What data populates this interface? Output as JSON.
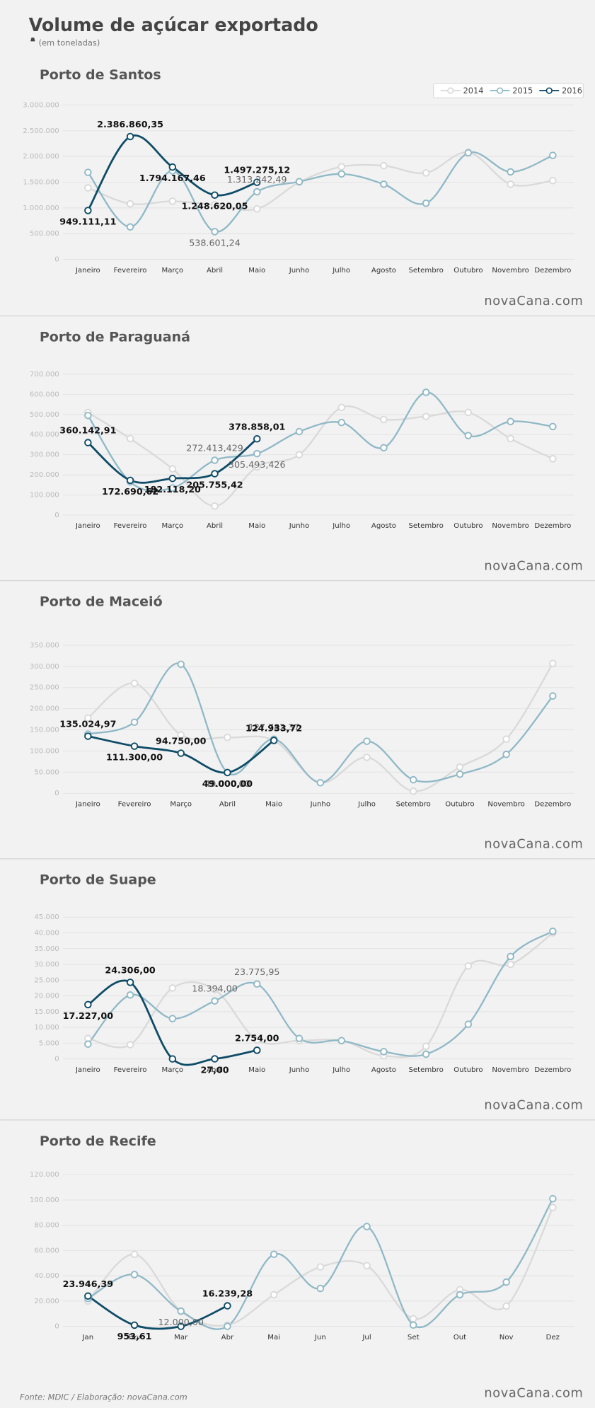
{
  "title": "Volume de açúcar exportado",
  "subtitle": "(em toneladas)",
  "source": "Fonte: MDIC / Elaboração: novaCana.com",
  "logo": "novaCana.com",
  "chart_data": [
    {
      "type": "line",
      "title": "Porto de Santos",
      "legend": "top-right",
      "categories": [
        "Janeiro",
        "Fevereiro",
        "Março",
        "Abril",
        "Maio",
        "Junho",
        "Julho",
        "Agosto",
        "Setembro",
        "Outubro",
        "Novembro",
        "Dezembro"
      ],
      "ylim": [
        0,
        3000000
      ],
      "yticks": [
        0,
        {
          "value": 500000,
          "label": "500.000"
        },
        {
          "value": 1000000,
          "label": "1.000.000"
        },
        {
          "value": 1500000,
          "label": "1.500.000"
        },
        {
          "value": 2000000,
          "label": "2.000.000"
        },
        {
          "value": 2500000,
          "label": "2.500.000"
        },
        {
          "value": 3000000,
          "label": "3.000.000"
        }
      ],
      "grid": true,
      "series": [
        {
          "name": "2014",
          "color": "#d9d9d9",
          "values": [
            1390000,
            1080000,
            1130000,
            1060000,
            980000,
            1500000,
            1800000,
            1820000,
            1680000,
            2080000,
            1460000,
            1530000
          ]
        },
        {
          "name": "2015",
          "color": "#8fb8c6",
          "values": [
            1690000,
            630000,
            1720000,
            538601.24,
            1313242.49,
            1510000,
            1660000,
            1460000,
            1090000,
            2070000,
            1700000,
            2020000
          ],
          "value_labels": [
            null,
            null,
            null,
            "538.601,24",
            "1.313.242,49",
            null,
            null,
            null,
            null,
            null,
            null,
            null
          ]
        },
        {
          "name": "2016",
          "color": "#0f4c67",
          "values": [
            949111.11,
            2386860.35,
            1794167.46,
            1248620.05,
            1497275.12,
            null,
            null,
            null,
            null,
            null,
            null,
            null
          ],
          "value_labels": [
            "949.111,11",
            "2.386.860,35",
            "1.794.167,46",
            "1.248.620,05",
            "1.497.275,12",
            null,
            null,
            null,
            null,
            null,
            null,
            null
          ]
        }
      ]
    },
    {
      "type": "line",
      "title": "Porto de Paraguaná",
      "categories": [
        "Janeiro",
        "Fevereiro",
        "Março",
        "Abril",
        "Maio",
        "Junho",
        "Julho",
        "Agosto",
        "Setembro",
        "Outubro",
        "Novembro",
        "Dezembro"
      ],
      "ylim": [
        0,
        700000
      ],
      "yticks": [
        0,
        {
          "value": 100000,
          "label": "100.000"
        },
        {
          "value": 200000,
          "label": "200.000"
        },
        {
          "value": 300000,
          "label": "300.000"
        },
        {
          "value": 400000,
          "label": "400.000"
        },
        {
          "value": 500000,
          "label": "500.000"
        },
        {
          "value": 600000,
          "label": "600.000"
        },
        {
          "value": 700000,
          "label": "700.000"
        }
      ],
      "grid": true,
      "series": [
        {
          "name": "2014",
          "color": "#d9d9d9",
          "values": [
            510000,
            380000,
            230000,
            45000,
            240000,
            300000,
            535000,
            475000,
            490000,
            510000,
            380000,
            280000
          ]
        },
        {
          "name": "2015",
          "color": "#8fb8c6",
          "values": [
            495000,
            165000,
            135000,
            272413.429,
            305493.426,
            415000,
            460000,
            335000,
            610000,
            395000,
            465000,
            440000
          ],
          "value_labels": [
            null,
            null,
            null,
            "272.413,429",
            "305.493,426",
            null,
            null,
            null,
            null,
            null,
            null,
            null
          ]
        },
        {
          "name": "2016",
          "color": "#0f4c67",
          "values": [
            360142.91,
            172690.62,
            182118.2,
            205755.42,
            378858.01,
            null,
            null,
            null,
            null,
            null,
            null,
            null
          ],
          "value_labels": [
            "360.142,91",
            "172.690,62",
            "182.118,20",
            "205.755,42",
            "378.858,01",
            null,
            null,
            null,
            null,
            null,
            null,
            null
          ]
        }
      ]
    },
    {
      "type": "line",
      "title": "Porto de Maceió",
      "categories": [
        "Janeiro",
        "Fevereiro",
        "Março",
        "Abril",
        "Maio",
        "Junho",
        "Julho",
        "Setembro",
        "Outubro",
        "Novembro",
        "Dezembro"
      ],
      "ylim": [
        0,
        350000
      ],
      "yticks": [
        0,
        {
          "value": 50000,
          "label": "50.000"
        },
        {
          "value": 100000,
          "label": "100.000"
        },
        {
          "value": 150000,
          "label": "150.000"
        },
        {
          "value": 200000,
          "label": "200.000"
        },
        {
          "value": 250000,
          "label": "250.000"
        },
        {
          "value": 300000,
          "label": "300.000"
        },
        {
          "value": 350000,
          "label": "350.000"
        }
      ],
      "grid": true,
      "series": [
        {
          "name": "2014",
          "color": "#d9d9d9",
          "values": [
            178000,
            260000,
            138000,
            132000,
            125000,
            25000,
            85000,
            5000,
            62000,
            128000,
            307000
          ]
        },
        {
          "name": "2015",
          "color": "#8fb8c6",
          "values": [
            140000,
            168000,
            305000,
            49000,
            127782.37,
            25000,
            123000,
            32000,
            45000,
            92000,
            230000
          ],
          "value_labels": [
            null,
            null,
            null,
            "49.000,00",
            "127.782,37",
            null,
            null,
            null,
            null,
            null,
            null
          ]
        },
        {
          "name": "2016",
          "color": "#0f4c67",
          "values": [
            135024.97,
            111300.0,
            94750.0,
            49000.0,
            124933.72,
            null,
            null,
            null,
            null,
            null,
            null
          ],
          "value_labels": [
            "135.024,97",
            "111.300,00",
            "94.750,00",
            "49.000,00",
            "124.933,72",
            null,
            null,
            null,
            null,
            null,
            null
          ]
        }
      ]
    },
    {
      "type": "line",
      "title": "Porto de Suape",
      "categories": [
        "Janeiro",
        "Fevereiro",
        "Março",
        "Abril",
        "Maio",
        "Junho",
        "Julho",
        "Agosto",
        "Setembro",
        "Outubro",
        "Novembro",
        "Dezembro"
      ],
      "ylim": [
        0,
        45000
      ],
      "yticks": [
        0,
        {
          "value": 5000,
          "label": "5.000"
        },
        {
          "value": 10000,
          "label": "10.000"
        },
        {
          "value": 15000,
          "label": "15.000"
        },
        {
          "value": 20000,
          "label": "20.000"
        },
        {
          "value": 25000,
          "label": "25.000"
        },
        {
          "value": 30000,
          "label": "30.000"
        },
        {
          "value": 35000,
          "label": "35.000"
        },
        {
          "value": 40000,
          "label": "40.000"
        },
        {
          "value": 45000,
          "label": "45.000"
        }
      ],
      "grid": true,
      "series": [
        {
          "name": "2014",
          "color": "#d9d9d9",
          "values": [
            6500,
            4500,
            22500,
            22000,
            6000,
            5800,
            5800,
            1000,
            4000,
            29500,
            30000,
            40000
          ]
        },
        {
          "name": "2015",
          "color": "#8fb8c6",
          "values": [
            4700,
            20300,
            12800,
            18394.0,
            23775.95,
            6500,
            5800,
            2300,
            1500,
            11000,
            32500,
            40500
          ],
          "value_labels": [
            null,
            null,
            null,
            "18.394,00",
            "23.775,95",
            null,
            null,
            null,
            null,
            null,
            null,
            null
          ]
        },
        {
          "name": "2016",
          "color": "#0f4c67",
          "values": [
            17227.0,
            24306.0,
            0,
            27.0,
            2754.0,
            null,
            null,
            null,
            null,
            null,
            null,
            null
          ],
          "value_labels": [
            "17.227,00",
            "24.306,00",
            null,
            "27,00",
            "2.754,00",
            null,
            null,
            null,
            null,
            null,
            null,
            null
          ]
        }
      ]
    },
    {
      "type": "line",
      "title": "Porto de Recife",
      "categories": [
        "Jan",
        "Fev",
        "Mar",
        "Abr",
        "Mai",
        "Jun",
        "Jul",
        "Set",
        "Out",
        "Nov",
        "Dez"
      ],
      "ylim": [
        0,
        120000
      ],
      "yticks": [
        0,
        {
          "value": 20000,
          "label": "20.000"
        },
        {
          "value": 40000,
          "label": "40.000"
        },
        {
          "value": 60000,
          "label": "60.000"
        },
        {
          "value": 80000,
          "label": "80.000"
        },
        {
          "value": 100000,
          "label": "100.000"
        },
        {
          "value": 120000,
          "label": "120.000"
        }
      ],
      "grid": true,
      "series": [
        {
          "name": "2014",
          "color": "#d9d9d9",
          "values": [
            20000,
            57000,
            12000,
            1000,
            25000,
            47000,
            48000,
            6000,
            29000,
            16000,
            94000
          ]
        },
        {
          "name": "2015",
          "color": "#8fb8c6",
          "values": [
            22000,
            41000,
            12000.0,
            0,
            57000,
            30000,
            79000,
            1000,
            25000,
            35000,
            101000
          ],
          "value_labels": [
            null,
            null,
            "12.000,00",
            null,
            null,
            null,
            null,
            null,
            null,
            null,
            null
          ]
        },
        {
          "name": "2016",
          "color": "#0f4c67",
          "values": [
            23946.39,
            953.61,
            0,
            16239.28,
            null,
            null,
            null,
            null,
            null,
            null,
            null
          ],
          "value_labels": [
            "23.946,39",
            "953,61",
            null,
            "16.239,28",
            null,
            null,
            null,
            null,
            null,
            null,
            null
          ]
        }
      ]
    }
  ]
}
